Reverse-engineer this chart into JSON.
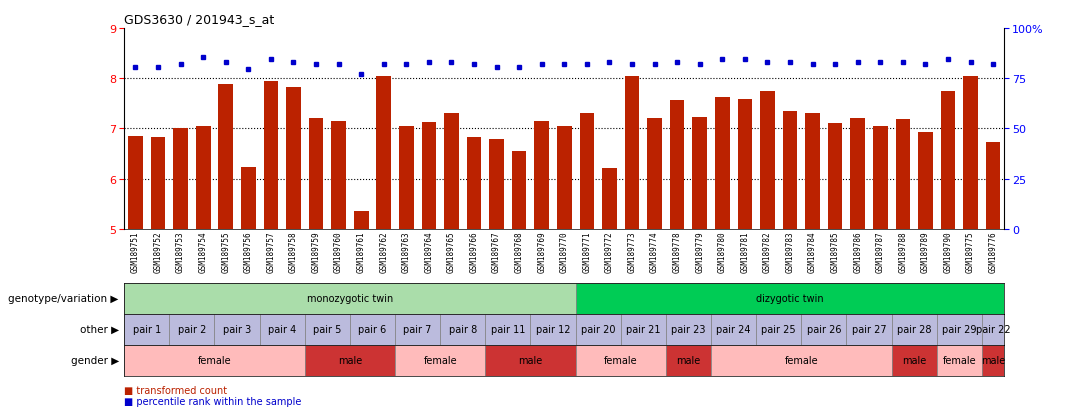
{
  "title": "GDS3630 / 201943_s_at",
  "samples": [
    "GSM189751",
    "GSM189752",
    "GSM189753",
    "GSM189754",
    "GSM189755",
    "GSM189756",
    "GSM189757",
    "GSM189758",
    "GSM189759",
    "GSM189760",
    "GSM189761",
    "GSM189762",
    "GSM189763",
    "GSM189764",
    "GSM189765",
    "GSM189766",
    "GSM189767",
    "GSM189768",
    "GSM189769",
    "GSM189770",
    "GSM189771",
    "GSM189772",
    "GSM189773",
    "GSM189774",
    "GSM189778",
    "GSM189779",
    "GSM189780",
    "GSM189781",
    "GSM189782",
    "GSM189783",
    "GSM189784",
    "GSM189785",
    "GSM189786",
    "GSM189787",
    "GSM189788",
    "GSM189789",
    "GSM189790",
    "GSM189775",
    "GSM189776"
  ],
  "bar_values": [
    6.85,
    6.82,
    7.0,
    7.05,
    7.88,
    6.24,
    7.95,
    7.82,
    7.2,
    7.15,
    5.35,
    8.05,
    7.05,
    7.12,
    7.3,
    6.82,
    6.78,
    6.55,
    7.15,
    7.05,
    7.3,
    6.22,
    8.05,
    7.2,
    7.56,
    7.22,
    7.62,
    7.58,
    7.75,
    7.35,
    7.3,
    7.1,
    7.2,
    7.05,
    7.18,
    6.92,
    7.75,
    8.05,
    6.72
  ],
  "dot_values": [
    8.22,
    8.22,
    8.28,
    8.42,
    8.32,
    8.18,
    8.38,
    8.32,
    8.28,
    8.28,
    8.08,
    8.28,
    8.28,
    8.32,
    8.32,
    8.28,
    8.22,
    8.22,
    8.28,
    8.28,
    8.28,
    8.32,
    8.28,
    8.28,
    8.32,
    8.28,
    8.38,
    8.38,
    8.32,
    8.32,
    8.28,
    8.28,
    8.32,
    8.32,
    8.32,
    8.28,
    8.38,
    8.32,
    8.28
  ],
  "ylim": [
    5,
    9
  ],
  "yticks_left": [
    5,
    6,
    7,
    8,
    9
  ],
  "yticks_right": [
    0,
    25,
    50,
    75,
    100
  ],
  "bar_color": "#bb2200",
  "dot_color": "#0000cc",
  "background_color": "#ffffff",
  "genotype_segments": [
    {
      "text": "monozygotic twin",
      "start": 0,
      "end": 19,
      "color": "#aaddaa"
    },
    {
      "text": "dizygotic twin",
      "start": 20,
      "end": 38,
      "color": "#00cc55"
    }
  ],
  "other_cells": [
    {
      "text": "pair 1",
      "start": 0,
      "end": 1
    },
    {
      "text": "pair 2",
      "start": 2,
      "end": 3
    },
    {
      "text": "pair 3",
      "start": 4,
      "end": 5
    },
    {
      "text": "pair 4",
      "start": 6,
      "end": 7
    },
    {
      "text": "pair 5",
      "start": 8,
      "end": 9
    },
    {
      "text": "pair 6",
      "start": 10,
      "end": 11
    },
    {
      "text": "pair 7",
      "start": 12,
      "end": 13
    },
    {
      "text": "pair 8",
      "start": 14,
      "end": 15
    },
    {
      "text": "pair 11",
      "start": 16,
      "end": 17
    },
    {
      "text": "pair 12",
      "start": 18,
      "end": 19
    },
    {
      "text": "pair 20",
      "start": 20,
      "end": 21
    },
    {
      "text": "pair 21",
      "start": 22,
      "end": 23
    },
    {
      "text": "pair 23",
      "start": 24,
      "end": 25
    },
    {
      "text": "pair 24",
      "start": 26,
      "end": 27
    },
    {
      "text": "pair 25",
      "start": 28,
      "end": 29
    },
    {
      "text": "pair 26",
      "start": 30,
      "end": 31
    },
    {
      "text": "pair 27",
      "start": 32,
      "end": 33
    },
    {
      "text": "pair 28",
      "start": 34,
      "end": 35
    },
    {
      "text": "pair 29",
      "start": 36,
      "end": 37
    },
    {
      "text": "pair 22",
      "start": 38,
      "end": 38
    }
  ],
  "other_color": "#bbbbdd",
  "gender_segments": [
    {
      "text": "female",
      "start": 0,
      "end": 7,
      "color": "#ffbbbb"
    },
    {
      "text": "male",
      "start": 8,
      "end": 11,
      "color": "#cc3333"
    },
    {
      "text": "female",
      "start": 12,
      "end": 15,
      "color": "#ffbbbb"
    },
    {
      "text": "male",
      "start": 16,
      "end": 19,
      "color": "#cc3333"
    },
    {
      "text": "female",
      "start": 20,
      "end": 23,
      "color": "#ffbbbb"
    },
    {
      "text": "male",
      "start": 24,
      "end": 25,
      "color": "#cc3333"
    },
    {
      "text": "female",
      "start": 26,
      "end": 33,
      "color": "#ffbbbb"
    },
    {
      "text": "male",
      "start": 34,
      "end": 35,
      "color": "#cc3333"
    },
    {
      "text": "female",
      "start": 36,
      "end": 37,
      "color": "#ffbbbb"
    },
    {
      "text": "male",
      "start": 38,
      "end": 38,
      "color": "#cc3333"
    }
  ]
}
